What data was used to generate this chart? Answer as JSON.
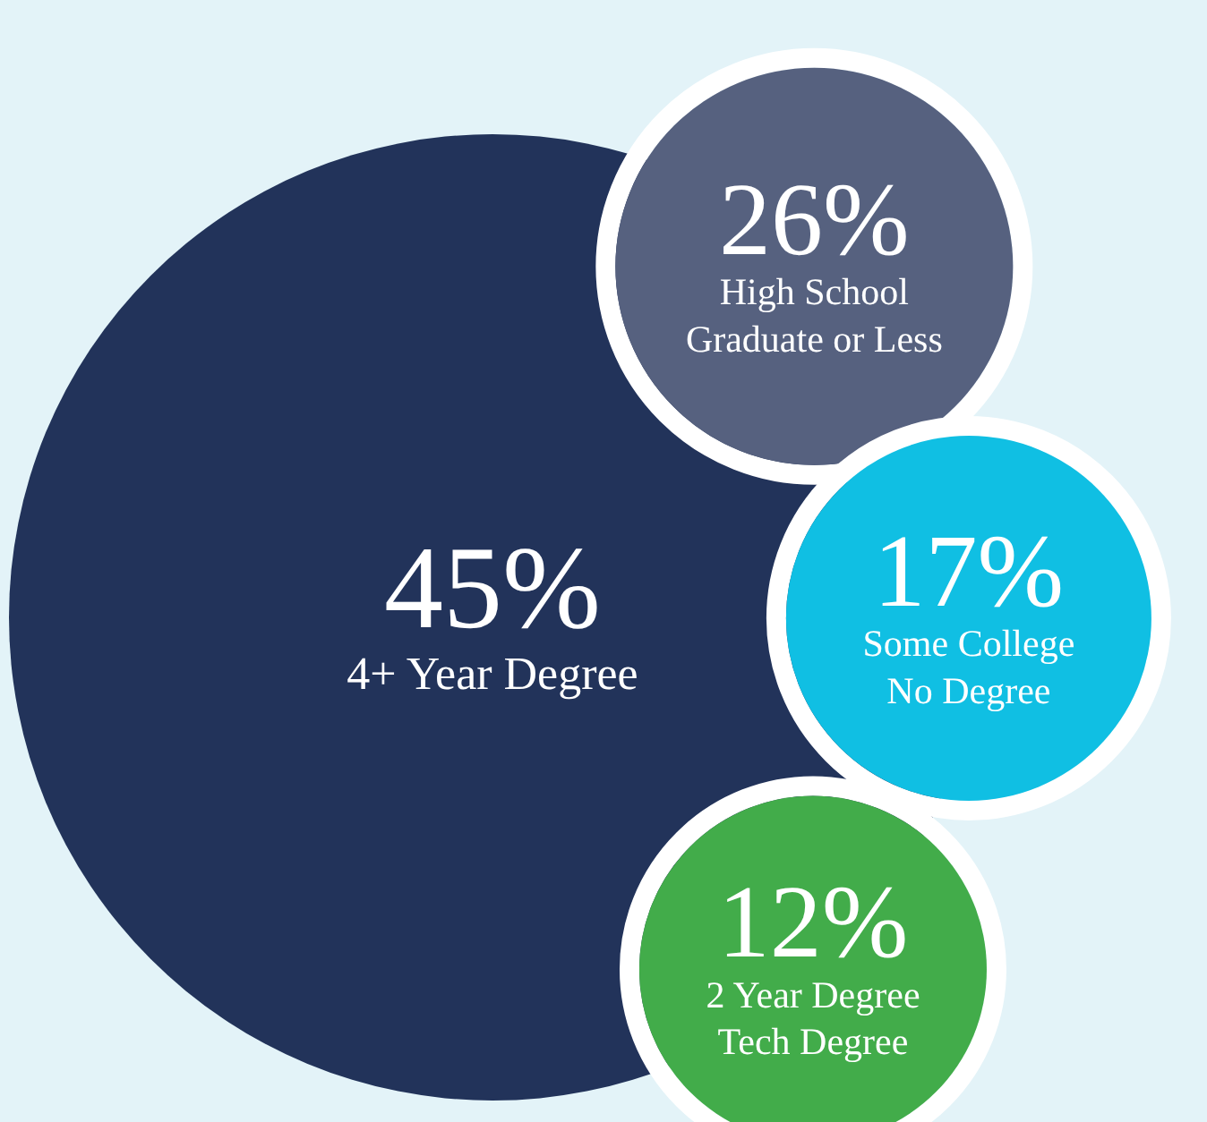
{
  "chart_data": {
    "type": "other",
    "categories": [
      "4+ Year Degree",
      "High School\nGraduate or Less",
      "Some College\nNo Degree",
      "2 Year Degree\nTech Degree"
    ],
    "values": [
      45,
      26,
      17,
      12
    ],
    "value_labels": [
      "45%",
      "26%",
      "17%",
      "12%"
    ],
    "colors": [
      "#22335a",
      "#56617f",
      "#10bfe3",
      "#42ac4a"
    ]
  }
}
